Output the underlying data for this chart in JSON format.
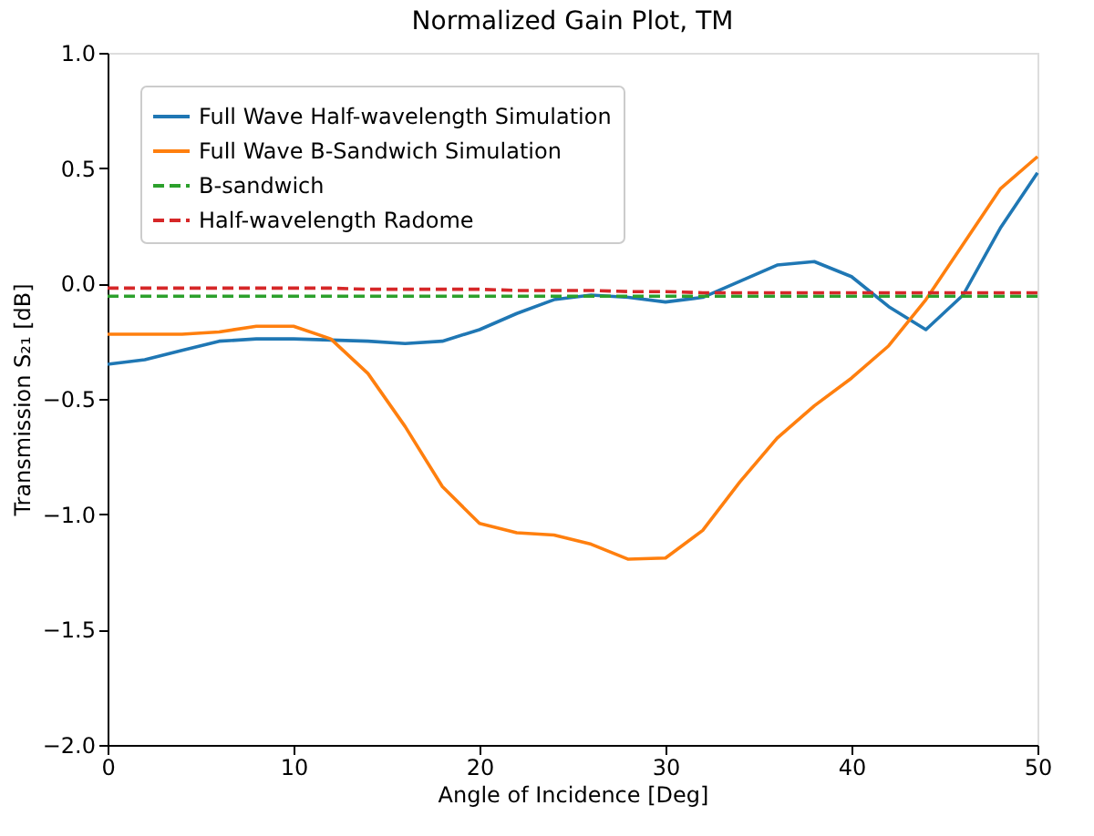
{
  "chart_data": {
    "type": "line",
    "title": "Normalized Gain Plot, TM",
    "xlabel": "Angle of Incidence [Deg]",
    "ylabel": "Transmission S₂₁ [dB]",
    "x": [
      0,
      2,
      4,
      6,
      8,
      10,
      12,
      14,
      16,
      18,
      20,
      22,
      24,
      26,
      28,
      30,
      32,
      34,
      36,
      38,
      40,
      42,
      44,
      46,
      48,
      50
    ],
    "series": [
      {
        "name": "Full Wave Half-wavelength Simulation",
        "color": "#1f77b4",
        "line_style": "solid",
        "values": [
          -0.35,
          -0.33,
          -0.29,
          -0.25,
          -0.24,
          -0.24,
          -0.245,
          -0.25,
          -0.26,
          -0.25,
          -0.2,
          -0.13,
          -0.07,
          -0.05,
          -0.06,
          -0.08,
          -0.06,
          0.01,
          0.08,
          0.095,
          0.03,
          -0.1,
          -0.2,
          -0.05,
          0.24,
          0.48
        ]
      },
      {
        "name": "Full Wave B-Sandwich Simulation",
        "color": "#ff7f0e",
        "line_style": "solid",
        "values": [
          -0.22,
          -0.22,
          -0.22,
          -0.21,
          -0.185,
          -0.185,
          -0.24,
          -0.39,
          -0.62,
          -0.88,
          -1.04,
          -1.08,
          -1.09,
          -1.13,
          -1.195,
          -1.19,
          -1.07,
          -0.86,
          -0.67,
          -0.53,
          -0.41,
          -0.27,
          -0.07,
          0.17,
          0.41,
          0.55
        ]
      },
      {
        "name": "B-sandwich",
        "color": "#2ca02c",
        "line_style": "dashed",
        "values": [
          -0.055,
          -0.055,
          -0.055,
          -0.055,
          -0.055,
          -0.055,
          -0.055,
          -0.055,
          -0.055,
          -0.055,
          -0.055,
          -0.055,
          -0.055,
          -0.055,
          -0.055,
          -0.055,
          -0.055,
          -0.055,
          -0.055,
          -0.055,
          -0.055,
          -0.055,
          -0.055,
          -0.055,
          -0.055,
          -0.055
        ]
      },
      {
        "name": "Half-wavelength Radome",
        "color": "#d62728",
        "line_style": "dashed",
        "values": [
          -0.02,
          -0.02,
          -0.02,
          -0.02,
          -0.02,
          -0.02,
          -0.02,
          -0.025,
          -0.025,
          -0.025,
          -0.025,
          -0.03,
          -0.03,
          -0.03,
          -0.035,
          -0.035,
          -0.04,
          -0.04,
          -0.04,
          -0.04,
          -0.04,
          -0.04,
          -0.04,
          -0.04,
          -0.04,
          -0.04
        ]
      }
    ],
    "xlim": [
      0,
      50
    ],
    "xticks": [
      0,
      10,
      20,
      30,
      40,
      50
    ],
    "ylim": [
      -2.0,
      1.0
    ],
    "yticks": [
      {
        "value": -2,
        "label": "−2.0"
      },
      {
        "value": -1.5,
        "label": "−1.5"
      },
      {
        "value": -1,
        "label": "−1.0"
      },
      {
        "value": -0.5,
        "label": "−0.5"
      },
      {
        "value": 0,
        "label": "0.0"
      },
      {
        "value": 0.5,
        "label": "0.5"
      },
      {
        "value": 1,
        "label": "1.0"
      }
    ],
    "grid": false,
    "legend": "top left",
    "marker": "none"
  }
}
